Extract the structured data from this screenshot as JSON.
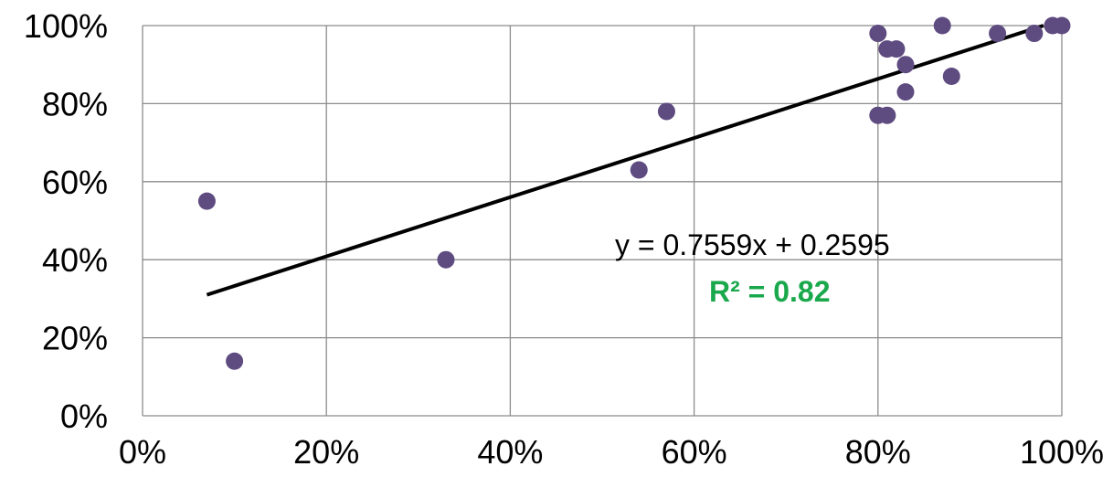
{
  "chart_data": {
    "type": "scatter",
    "title": "",
    "xlabel": "",
    "ylabel": "",
    "xlim": [
      0,
      100
    ],
    "ylim": [
      0,
      100
    ],
    "grid": true,
    "x_ticks": [
      {
        "value": 0,
        "label": "0%"
      },
      {
        "value": 20,
        "label": "20%"
      },
      {
        "value": 40,
        "label": "40%"
      },
      {
        "value": 60,
        "label": "60%"
      },
      {
        "value": 80,
        "label": "80%"
      },
      {
        "value": 100,
        "label": "100%"
      }
    ],
    "y_ticks": [
      {
        "value": 0,
        "label": "0%"
      },
      {
        "value": 20,
        "label": "20%"
      },
      {
        "value": 40,
        "label": "40%"
      },
      {
        "value": 60,
        "label": "60%"
      },
      {
        "value": 80,
        "label": "80%"
      },
      {
        "value": 100,
        "label": "100%"
      }
    ],
    "series": [
      {
        "color": "#5e4b80",
        "points": [
          {
            "x": 7,
            "y": 55
          },
          {
            "x": 10,
            "y": 14
          },
          {
            "x": 33,
            "y": 40
          },
          {
            "x": 54,
            "y": 63
          },
          {
            "x": 57,
            "y": 78
          },
          {
            "x": 80,
            "y": 98
          },
          {
            "x": 80,
            "y": 77
          },
          {
            "x": 81,
            "y": 94
          },
          {
            "x": 81,
            "y": 77
          },
          {
            "x": 82,
            "y": 94
          },
          {
            "x": 83,
            "y": 90
          },
          {
            "x": 83,
            "y": 83
          },
          {
            "x": 87,
            "y": 100
          },
          {
            "x": 88,
            "y": 87
          },
          {
            "x": 93,
            "y": 98
          },
          {
            "x": 97,
            "y": 98
          },
          {
            "x": 99,
            "y": 100
          },
          {
            "x": 100,
            "y": 100
          }
        ]
      }
    ],
    "trendline": {
      "color": "#000000",
      "x_start": 7,
      "y_start": 31,
      "x_end": 98,
      "y_end": 100,
      "equation": "y = 0.7559x + 0.2595",
      "r_squared": "R² = 0.82",
      "r_squared_color": "#1aa84c"
    }
  }
}
